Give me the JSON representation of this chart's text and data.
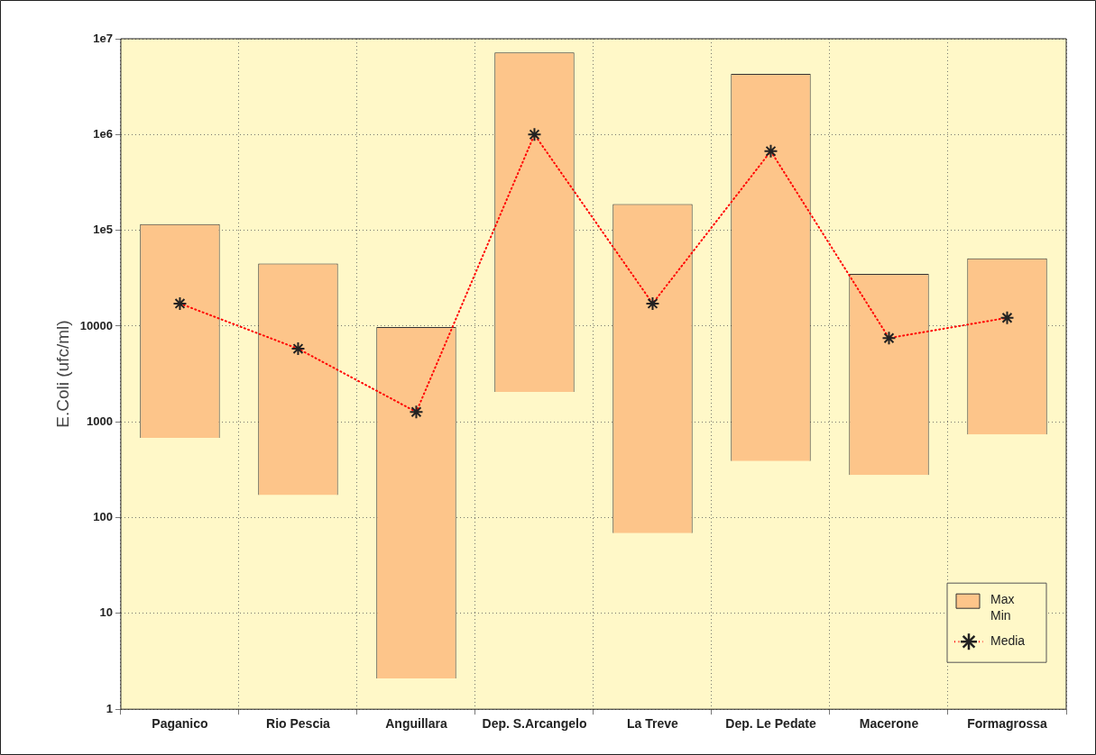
{
  "chart_data": {
    "type": "bar",
    "ylabel": "E.Coli (ufc/ml)",
    "log": "y",
    "grid": true,
    "legend": "bottom right",
    "marker": "cross",
    "line_style": "dotted",
    "categories": [
      "Paganico",
      "Rio Pescia",
      "Anguillara",
      "Dep. S.Arcangelo",
      "La Treve",
      "Dep. Le Pedate",
      "Macerone",
      "Formagrossa"
    ],
    "ylim": [
      1,
      10000000
    ],
    "yticks": [
      1,
      10,
      100,
      1000,
      10000,
      {
        "value": 100000,
        "label": "1e5"
      },
      {
        "value": 1000000,
        "label": "1e6"
      },
      {
        "value": 10000000,
        "label": "1e7"
      }
    ],
    "series": [
      {
        "name": "Max\nMin",
        "color": "#fdc58a",
        "base": [
          680,
          172,
          2.1,
          2050,
          69,
          390,
          278,
          740
        ],
        "values": [
          115320,
          44828,
          9798,
          7197950,
          187931,
          4299610,
          34722,
          50260
        ]
      },
      {
        "name": "Media",
        "type": "line",
        "color": "#ff0000",
        "values": [
          17200,
          5800,
          1270,
          1000000,
          17200,
          670000,
          7500,
          12200
        ]
      }
    ]
  }
}
